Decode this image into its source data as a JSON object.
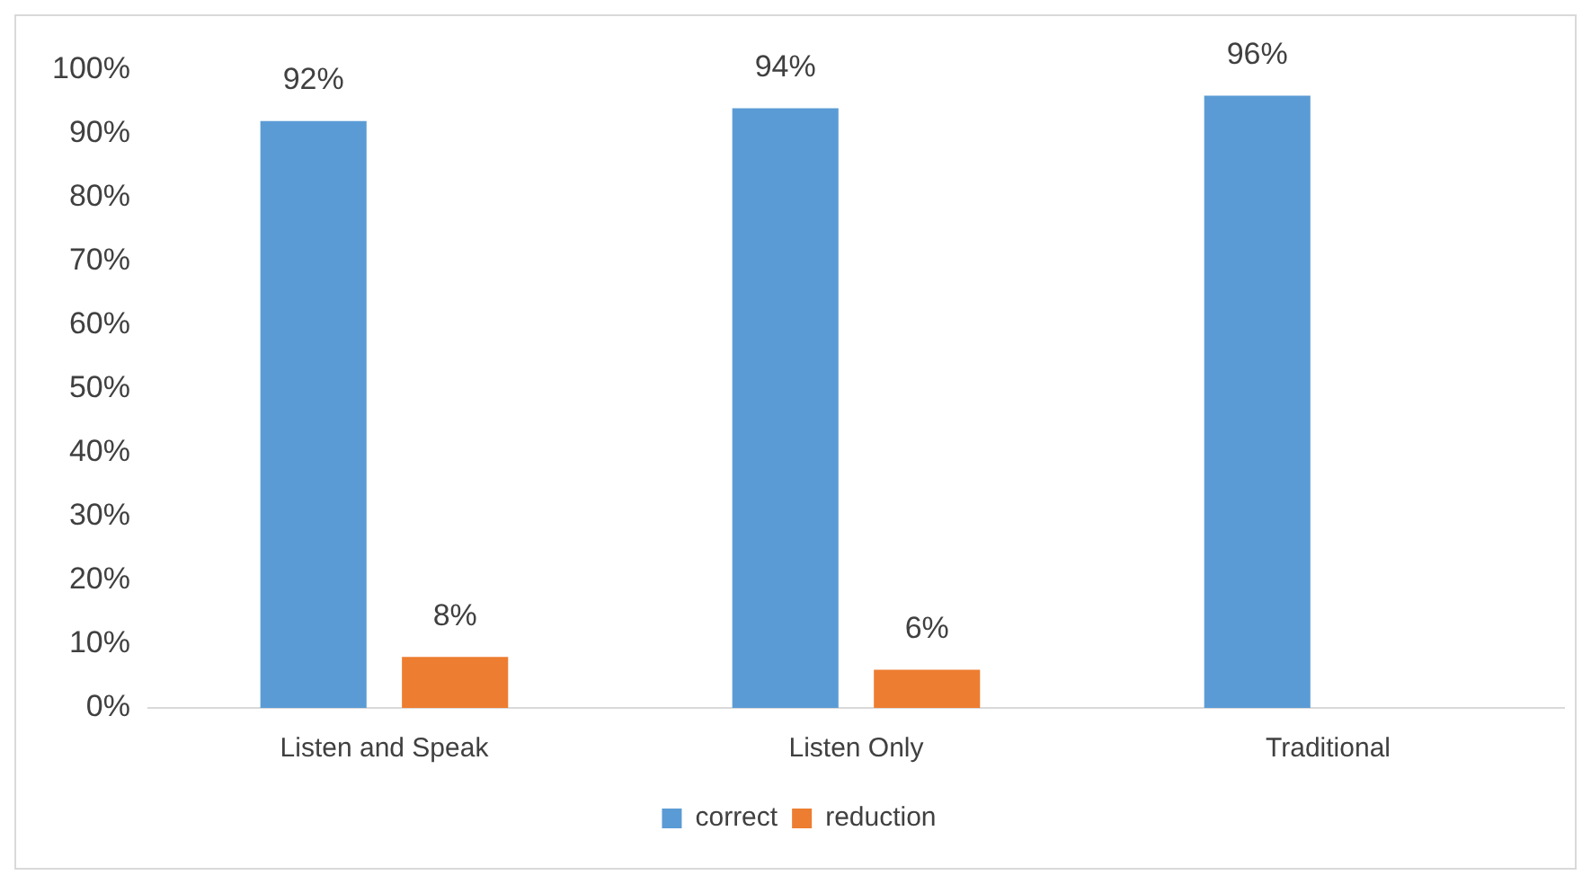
{
  "chart_data": {
    "type": "bar",
    "categories": [
      "Listen and Speak",
      "Listen Only",
      "Traditional"
    ],
    "series": [
      {
        "name": "correct",
        "color": "#5b9bd5",
        "values": [
          92,
          94,
          96
        ],
        "value_labels": [
          "92%",
          "94%",
          "96%"
        ]
      },
      {
        "name": "reduction",
        "color": "#ed7d31",
        "values": [
          8,
          6,
          null
        ],
        "value_labels": [
          "8%",
          "6%",
          null
        ]
      }
    ],
    "ylim": [
      0,
      100
    ],
    "yticks": [
      {
        "value": 0,
        "label": "0%"
      },
      {
        "value": 10,
        "label": "10%"
      },
      {
        "value": 20,
        "label": "20%"
      },
      {
        "value": 30,
        "label": "30%"
      },
      {
        "value": 40,
        "label": "40%"
      },
      {
        "value": 50,
        "label": "50%"
      },
      {
        "value": 60,
        "label": "60%"
      },
      {
        "value": 70,
        "label": "70%"
      },
      {
        "value": 80,
        "label": "80%"
      },
      {
        "value": 90,
        "label": "90%"
      },
      {
        "value": 100,
        "label": "100%"
      }
    ],
    "grid": false,
    "legend": "bottom"
  }
}
